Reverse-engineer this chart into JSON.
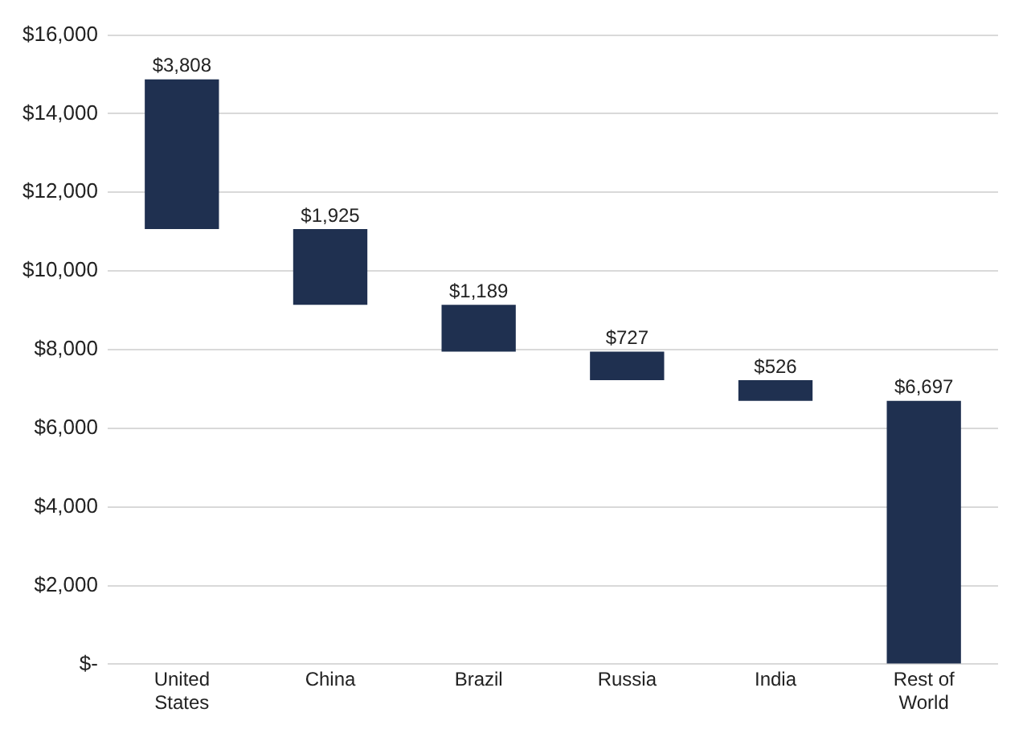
{
  "chart_data": {
    "type": "bar",
    "categories": [
      "United States",
      "China",
      "Brazil",
      "Russia",
      "India",
      "Rest of World"
    ],
    "values": [
      3808,
      1925,
      1189,
      727,
      526,
      6697
    ],
    "base": [
      11064,
      9139,
      7950,
      7223,
      6697,
      0
    ],
    "color": "#1f3050",
    "value_labels": [
      "$3,808",
      "$1,925",
      "$1,189",
      "$727",
      "$526",
      "$6,697"
    ],
    "ylim": [
      0,
      16000
    ],
    "yticks": [
      {
        "value": 0,
        "label": "$-"
      },
      {
        "value": 2000,
        "label": "$2,000"
      },
      {
        "value": 4000,
        "label": "$4,000"
      },
      {
        "value": 6000,
        "label": "$6,000"
      },
      {
        "value": 8000,
        "label": "$8,000"
      },
      {
        "value": 10000,
        "label": "$10,000"
      },
      {
        "value": 12000,
        "label": "$12,000"
      },
      {
        "value": 14000,
        "label": "$14,000"
      },
      {
        "value": 16000,
        "label": "$16,000"
      }
    ],
    "grid": "y",
    "legend": false
  }
}
